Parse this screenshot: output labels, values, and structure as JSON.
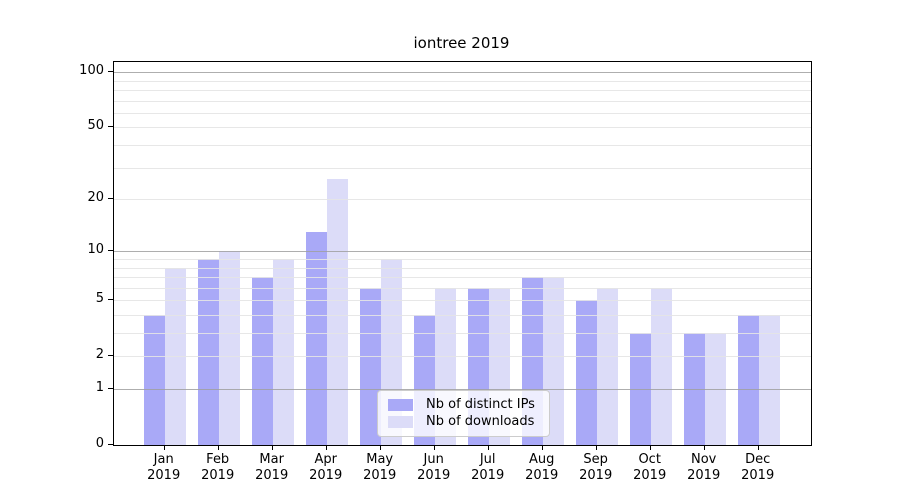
{
  "chart_data": {
    "type": "bar",
    "title": "iontree 2019",
    "categories": [
      "Jan 2019",
      "Feb 2019",
      "Mar 2019",
      "Apr 2019",
      "May 2019",
      "Jun 2019",
      "Jul 2019",
      "Aug 2019",
      "Sep 2019",
      "Oct 2019",
      "Nov 2019",
      "Dec 2019"
    ],
    "series": [
      {
        "name": "Nb of distinct IPs",
        "color": "#a9a9f7",
        "values": [
          4,
          9,
          7,
          13,
          6,
          4,
          6,
          7,
          5,
          3,
          3,
          4
        ]
      },
      {
        "name": "Nb of downloads",
        "color": "#dcdcf8",
        "values": [
          8,
          10,
          9,
          26,
          9,
          6,
          6,
          7,
          6,
          6,
          3,
          4
        ]
      }
    ],
    "xlabel": "",
    "ylabel": "",
    "yscale": "symlog (log10 of 1+value)",
    "yticks": [
      0,
      1,
      2,
      5,
      10,
      20,
      50,
      100
    ],
    "major_gridlines": [
      1,
      10,
      100
    ],
    "minor_gridlines": [
      2,
      3,
      4,
      5,
      6,
      7,
      8,
      9,
      20,
      30,
      40,
      50,
      60,
      70,
      80,
      90
    ],
    "ylim": [
      0,
      114
    ],
    "grid": true,
    "legend_position": "lower center",
    "bar_grouping": "paired, IPs left / downloads right of each month tick"
  }
}
